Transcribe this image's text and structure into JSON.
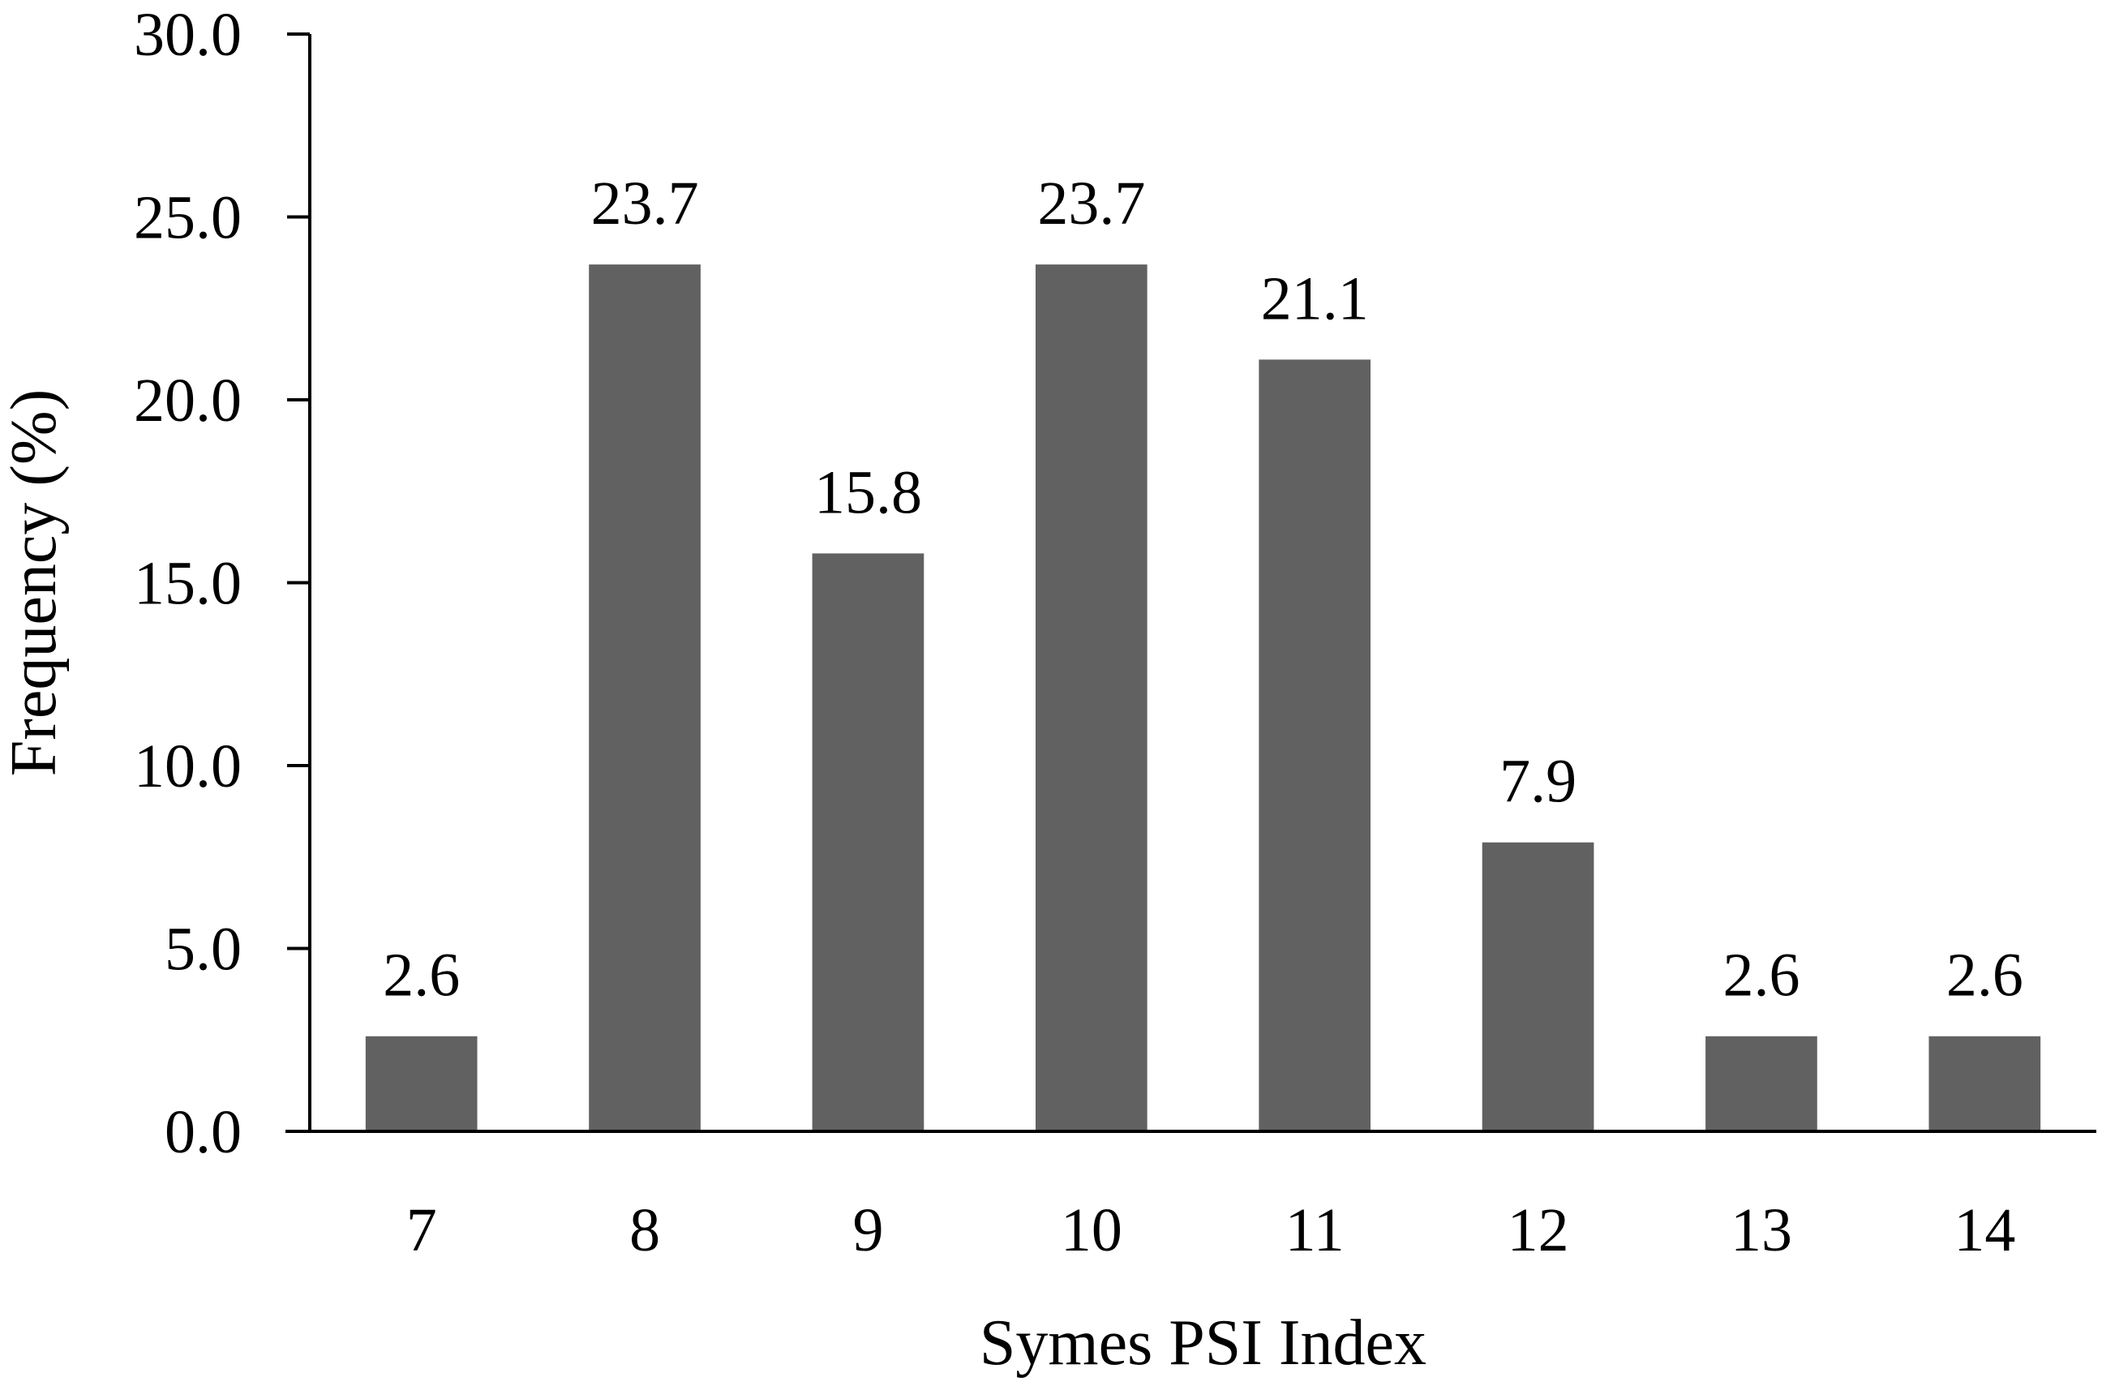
{
  "chart_data": {
    "type": "bar",
    "title": "",
    "xlabel": "Symes PSI Index",
    "ylabel": "Frequency (%)",
    "categories": [
      "7",
      "8",
      "9",
      "10",
      "11",
      "12",
      "13",
      "14"
    ],
    "values": [
      2.6,
      23.7,
      15.8,
      23.7,
      21.1,
      7.9,
      2.6,
      2.6
    ],
    "data_labels": [
      "2.6",
      "23.7",
      "15.8",
      "23.7",
      "21.1",
      "7.9",
      "2.6",
      "2.6"
    ],
    "ylim": [
      0,
      30
    ],
    "yticks": [
      0,
      5,
      10,
      15,
      20,
      25,
      30
    ],
    "ytick_labels": [
      "0.0",
      "5.0",
      "10.0",
      "15.0",
      "20.0",
      "25.0",
      "30.0"
    ],
    "grid": false,
    "legend": "none",
    "bar_color": "#616161",
    "axis_color": "#000000"
  }
}
